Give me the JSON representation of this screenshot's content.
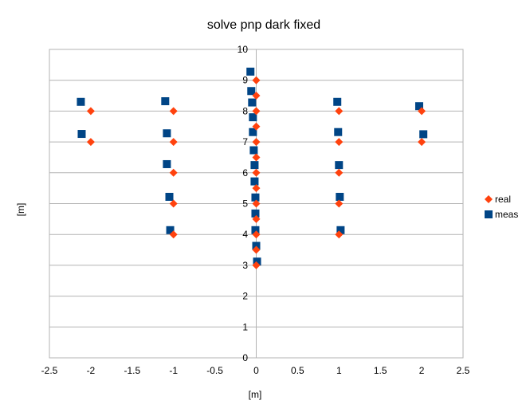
{
  "chart_data": {
    "type": "scatter",
    "title": "solve pnp dark fixed",
    "xlabel": "[m]",
    "ylabel": "[m]",
    "xlim": [
      -2.5,
      2.5
    ],
    "ylim": [
      0,
      10
    ],
    "xticks": [
      "-2.5",
      "-2",
      "-1.5",
      "-1",
      "-0.5",
      "0",
      "0.5",
      "1",
      "1.5",
      "2",
      "2.5"
    ],
    "yticks": [
      "0",
      "1",
      "2",
      "3",
      "4",
      "5",
      "6",
      "7",
      "8",
      "9",
      "10"
    ],
    "grid": "horizontal",
    "legend": "right",
    "series": [
      {
        "name": "real",
        "color": "#ff420e",
        "marker": "diamond",
        "points": [
          [
            -2,
            8
          ],
          [
            -2,
            7
          ],
          [
            -1,
            8
          ],
          [
            -1,
            7
          ],
          [
            -1,
            6
          ],
          [
            -1,
            5
          ],
          [
            -1,
            4
          ],
          [
            0,
            9
          ],
          [
            0,
            8.5
          ],
          [
            0,
            8
          ],
          [
            0,
            7.5
          ],
          [
            0,
            7
          ],
          [
            0,
            6.5
          ],
          [
            0,
            6
          ],
          [
            0,
            5.5
          ],
          [
            0,
            5
          ],
          [
            0,
            4.5
          ],
          [
            0,
            4
          ],
          [
            0,
            3.5
          ],
          [
            0,
            3
          ],
          [
            1,
            8
          ],
          [
            1,
            7
          ],
          [
            1,
            6
          ],
          [
            1,
            5
          ],
          [
            1,
            4
          ],
          [
            2,
            8
          ],
          [
            2,
            7
          ]
        ]
      },
      {
        "name": "meas",
        "color": "#004586",
        "marker": "square",
        "points": [
          [
            -2.12,
            8.3
          ],
          [
            -2.11,
            7.26
          ],
          [
            -1.1,
            8.32
          ],
          [
            -1.08,
            7.28
          ],
          [
            -1.08,
            6.28
          ],
          [
            -1.05,
            5.22
          ],
          [
            -1.04,
            4.14
          ],
          [
            -0.07,
            9.28
          ],
          [
            -0.06,
            8.65
          ],
          [
            -0.05,
            8.28
          ],
          [
            -0.04,
            7.8
          ],
          [
            -0.04,
            7.32
          ],
          [
            -0.03,
            6.73
          ],
          [
            -0.02,
            6.25
          ],
          [
            -0.02,
            5.72
          ],
          [
            -0.01,
            5.2
          ],
          [
            -0.01,
            4.68
          ],
          [
            -0.01,
            4.14
          ],
          [
            0,
            3.63
          ],
          [
            0.01,
            3.12
          ],
          [
            0.98,
            8.3
          ],
          [
            0.99,
            7.32
          ],
          [
            1.0,
            6.25
          ],
          [
            1.01,
            5.22
          ],
          [
            1.02,
            4.14
          ],
          [
            1.97,
            8.16
          ],
          [
            2.02,
            7.25
          ]
        ]
      }
    ]
  }
}
